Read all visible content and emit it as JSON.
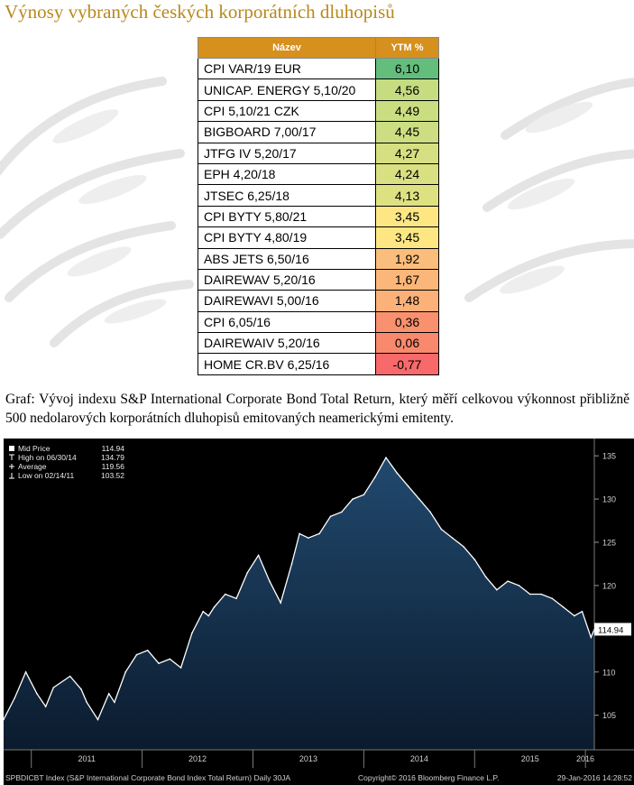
{
  "title": "Výnosy vybraných českých korporátních dluhopisů",
  "table": {
    "headers": [
      "Název",
      "YTM %"
    ],
    "rows": [
      {
        "name": "CPI VAR/19 EUR",
        "ytm": "6,10",
        "color": "#63be7b"
      },
      {
        "name": "UNICAP. ENERGY 5,10/20",
        "ytm": "4,56",
        "color": "#c6dc80"
      },
      {
        "name": "CPI 5,10/21 CZK",
        "ytm": "4,49",
        "color": "#cadd80"
      },
      {
        "name": "BIGBOARD 7,00/17",
        "ytm": "4,45",
        "color": "#cddd81"
      },
      {
        "name": "JTFG IV 5,20/17",
        "ytm": "4,27",
        "color": "#d6df81"
      },
      {
        "name": "EPH 4,20/18",
        "ytm": "4,24",
        "color": "#d9e081"
      },
      {
        "name": "JTSEC 6,25/18",
        "ytm": "4,13",
        "color": "#dee182"
      },
      {
        "name": "CPI BYTY 5,80/21",
        "ytm": "3,45",
        "color": "#fee783"
      },
      {
        "name": "CPI BYTY 4,80/19",
        "ytm": "3,45",
        "color": "#fee783"
      },
      {
        "name": "ABS JETS 6,50/16",
        "ytm": "1,92",
        "color": "#fbbd7b"
      },
      {
        "name": "DAIREWAV 5,20/16",
        "ytm": "1,67",
        "color": "#fbb679"
      },
      {
        "name": "DAIREWAVI 5,00/16",
        "ytm": "1,48",
        "color": "#fbb178"
      },
      {
        "name": "CPI 6,05/16",
        "ytm": "0,36",
        "color": "#f9916f"
      },
      {
        "name": "DAIREWAIV 5,20/16",
        "ytm": "0,06",
        "color": "#f8896d"
      },
      {
        "name": "HOME CR.BV 6,25/16",
        "ytm": "-0,77",
        "color": "#f8696b"
      }
    ]
  },
  "caption": "Graf: Vývoj indexu S&P International Corporate Bond Total Return, který měří celkovou výkonnost přibližně 500 nedolarových korporátních dluhopisů emitovaných neamerickými emitenty.",
  "chart_data": {
    "type": "area",
    "legend": [
      {
        "label": "Mid Price",
        "value": "114.94"
      },
      {
        "label": "High on 06/30/14",
        "value": "134.79"
      },
      {
        "label": "Average",
        "value": "119.56"
      },
      {
        "label": "Low on 02/14/11",
        "value": "103.52"
      }
    ],
    "x": [
      2010.75,
      2010.85,
      2010.95,
      2011.05,
      2011.13,
      2011.2,
      2011.35,
      2011.45,
      2011.5,
      2011.6,
      2011.7,
      2011.75,
      2011.85,
      2011.95,
      2012.05,
      2012.15,
      2012.25,
      2012.35,
      2012.45,
      2012.55,
      2012.6,
      2012.65,
      2012.75,
      2012.85,
      2012.95,
      2013.05,
      2013.15,
      2013.25,
      2013.35,
      2013.42,
      2013.5,
      2013.6,
      2013.7,
      2013.8,
      2013.9,
      2014.0,
      2014.1,
      2014.2,
      2014.3,
      2014.4,
      2014.5,
      2014.6,
      2014.7,
      2014.8,
      2014.9,
      2015.0,
      2015.1,
      2015.2,
      2015.3,
      2015.4,
      2015.5,
      2015.6,
      2015.7,
      2015.8,
      2015.9,
      2015.97,
      2016.05,
      2016.08
    ],
    "values": [
      104.5,
      107,
      110,
      107.5,
      106,
      108.2,
      109.5,
      108,
      106.5,
      104.5,
      107.5,
      106.5,
      110,
      112,
      112.5,
      111,
      111.5,
      110.5,
      114.5,
      117,
      116.5,
      117.5,
      119,
      118.5,
      121.5,
      123.5,
      120.5,
      118,
      122.5,
      126,
      125.5,
      126,
      128,
      128.5,
      130,
      130.5,
      132.5,
      134.79,
      133,
      131.5,
      130,
      128.5,
      126.5,
      125.5,
      124.5,
      123,
      121,
      119.5,
      120.5,
      120,
      119,
      119,
      118.5,
      117.5,
      116.5,
      117,
      114,
      114.94
    ],
    "y_ticks": [
      "105",
      "110",
      "115",
      "120",
      "125",
      "130",
      "135"
    ],
    "ylim": [
      101,
      137
    ],
    "x_ticks": [
      "2011",
      "2012",
      "2013",
      "2014",
      "2015",
      "2016"
    ],
    "last_price_label": "114.94",
    "footer_left": "SPBDICBT Index (S&P International Corporate Bond Index Total Return)  Daily 30JA",
    "footer_center": "Copyright© 2016 Bloomberg Finance L.P.",
    "footer_right": "29-Jan-2016 14:28:52"
  }
}
